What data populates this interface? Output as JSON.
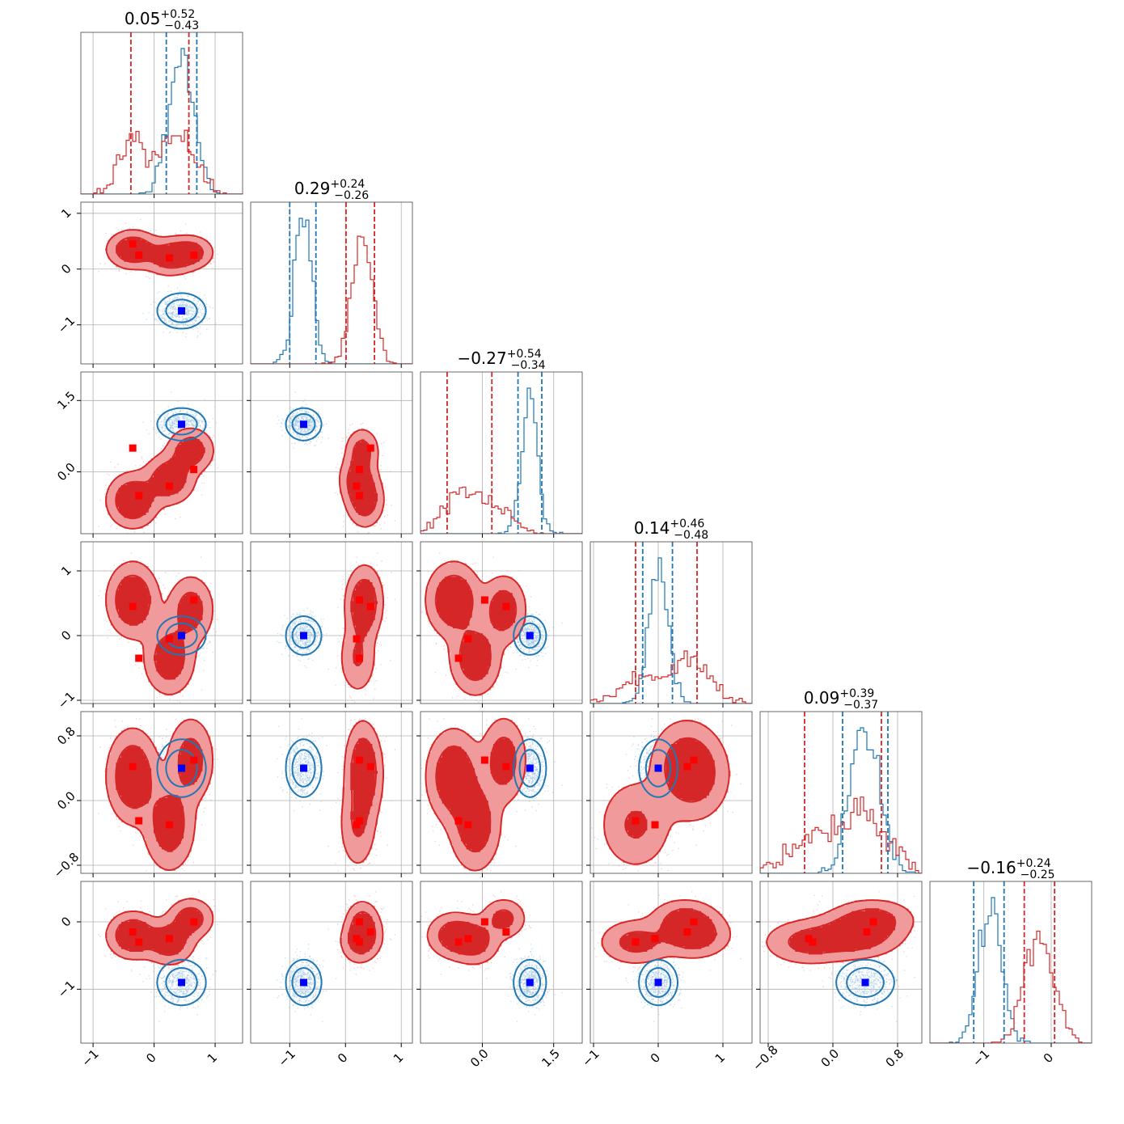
{
  "colors": {
    "red": "#d62728",
    "blue": "#1f77b4",
    "red_marker": "#ff0000",
    "blue_marker": "#0000ff",
    "grid": "#b0b0b0"
  },
  "chart_data": {
    "type": "corner",
    "n_params": 6,
    "grid": true,
    "params": [
      {
        "range": [
          -1.2,
          1.45
        ],
        "ticks": [
          -1,
          0,
          1
        ],
        "tick_labels": [
          "−1",
          "0",
          "1"
        ],
        "title": {
          "median": "0.05",
          "plus": "+0.52",
          "minus": "−0.43"
        },
        "quantiles": {
          "red": [
            -0.38,
            0.57
          ],
          "blue": [
            0.2,
            0.7
          ]
        }
      },
      {
        "range": [
          -1.7,
          1.2
        ],
        "ticks": [
          -1,
          0,
          1
        ],
        "tick_labels": [
          "−1",
          "0",
          "1"
        ],
        "title": {
          "median": "0.29",
          "plus": "+0.24",
          "minus": "−0.26"
        },
        "quantiles": {
          "red": [
            0.01,
            0.52
          ],
          "blue": [
            -1.0,
            -0.53
          ]
        }
      },
      {
        "range": [
          -1.3,
          2.1
        ],
        "ticks": [
          0.0,
          1.5
        ],
        "tick_labels": [
          "0.0",
          "1.5"
        ],
        "y_tick_labels": [
          "0.0",
          "1.5"
        ],
        "title": {
          "median": "−0.27",
          "plus": "+0.54",
          "minus": "−0.34"
        },
        "quantiles": {
          "red": [
            -0.74,
            0.2
          ],
          "blue": [
            0.75,
            1.25
          ]
        }
      },
      {
        "range": [
          -1.05,
          1.45
        ],
        "ticks": [
          -1,
          0,
          1
        ],
        "tick_labels": [
          "−1",
          "0",
          "1"
        ],
        "title": {
          "median": "0.14",
          "plus": "+0.46",
          "minus": "−0.48"
        },
        "quantiles": {
          "red": [
            -0.35,
            0.6
          ],
          "blue": [
            -0.24,
            0.22
          ]
        }
      },
      {
        "range": [
          -0.9,
          1.1
        ],
        "ticks": [
          -0.8,
          0.0,
          0.8
        ],
        "tick_labels": [
          "−0.8",
          "0.0",
          "0.8"
        ],
        "title": {
          "median": "0.09",
          "plus": "+0.39",
          "minus": "−0.37"
        },
        "quantiles": {
          "red": [
            -0.35,
            0.6
          ],
          "blue": [
            0.12,
            0.68
          ]
        }
      },
      {
        "range": [
          -1.8,
          0.6
        ],
        "ticks": [
          -1,
          0
        ],
        "tick_labels": [
          "−1",
          "0"
        ],
        "title": {
          "median": "−0.16",
          "plus": "+0.24",
          "minus": "−0.25"
        },
        "quantiles": {
          "red": [
            -0.4,
            0.05
          ],
          "blue": [
            -1.15,
            -0.7
          ]
        }
      }
    ],
    "series": [
      {
        "color_key": "red",
        "modes": [
          {
            "w": 1.0,
            "mu": [
              -0.35,
              0.35,
              -0.6,
              0.55,
              0.3,
              -0.2
            ],
            "sigma": [
              0.22,
              0.18,
              0.3,
              0.3,
              0.3,
              0.18
            ]
          },
          {
            "w": 0.8,
            "mu": [
              0.25,
              0.22,
              -0.15,
              -0.35,
              -0.3,
              -0.3
            ],
            "sigma": [
              0.22,
              0.18,
              0.28,
              0.3,
              0.3,
              0.18
            ]
          },
          {
            "w": 0.6,
            "mu": [
              0.6,
              0.3,
              0.45,
              0.4,
              0.5,
              0.05
            ],
            "sigma": [
              0.2,
              0.16,
              0.25,
              0.28,
              0.28,
              0.16
            ]
          }
        ],
        "markers": [
          [
            -0.35,
            0.45,
            0.5,
            0.45,
            0.42,
            -0.15
          ],
          [
            -0.25,
            0.25,
            -0.5,
            -0.35,
            -0.25,
            -0.3
          ],
          [
            0.25,
            0.2,
            -0.3,
            -0.05,
            -0.3,
            -0.25
          ],
          [
            0.65,
            0.25,
            0.05,
            0.55,
            0.5,
            0.0
          ]
        ]
      },
      {
        "color_key": "blue",
        "modes": [
          {
            "w": 1.0,
            "mu": [
              0.45,
              -0.75,
              1.0,
              0.0,
              0.4,
              -0.9
            ],
            "sigma": [
              0.2,
              0.16,
              0.17,
              0.15,
              0.18,
              0.17
            ]
          }
        ],
        "markers": [
          [
            0.45,
            -0.75,
            1.0,
            0.0,
            0.4,
            -0.9
          ]
        ]
      }
    ]
  }
}
